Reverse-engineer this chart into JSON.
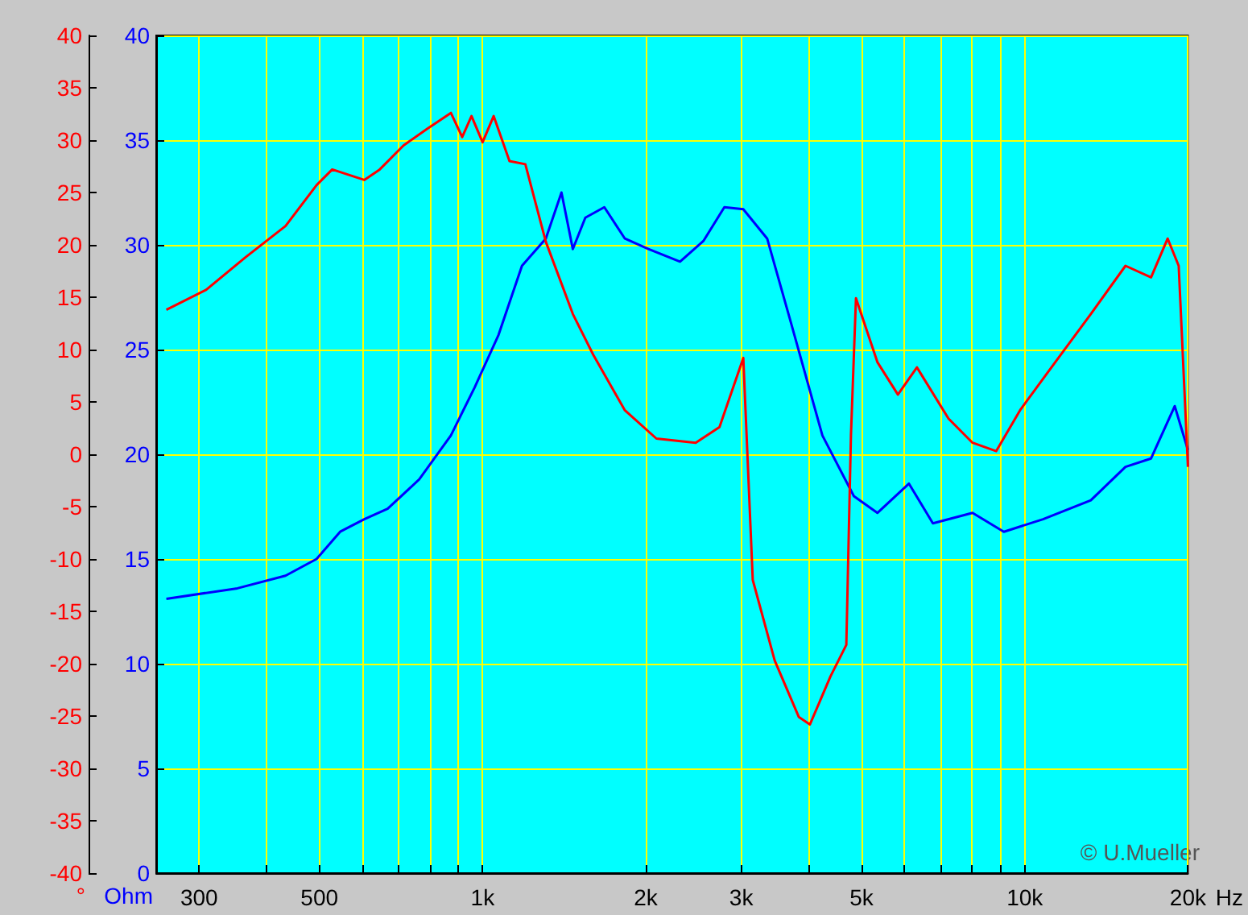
{
  "chart_data": {
    "type": "line",
    "log": "x",
    "grid": true,
    "marker": "none",
    "ylabel": "Ohm",
    "y2label": "°",
    "xlim": [
      250,
      20000
    ],
    "xticks": [
      300,
      {
        "value": 400,
        "label": null
      },
      500,
      {
        "value": 600,
        "label": null
      },
      {
        "value": 700,
        "label": null
      },
      {
        "value": 800,
        "label": null
      },
      {
        "value": 900,
        "label": null
      },
      {
        "value": 1000,
        "label": "1k"
      },
      {
        "value": 2000,
        "label": "2k"
      },
      {
        "value": 3000,
        "label": "3k"
      },
      {
        "value": 4000,
        "label": null
      },
      {
        "value": 5000,
        "label": "5k"
      },
      {
        "value": 6000,
        "label": null
      },
      {
        "value": 7000,
        "label": null
      },
      {
        "value": 8000,
        "label": null
      },
      {
        "value": 9000,
        "label": null
      },
      {
        "value": 10000,
        "label": "10k"
      },
      {
        "value": 20000,
        "label": "20k"
      }
    ],
    "xlabel": "Hz",
    "ylim": [
      0,
      40
    ],
    "yticks": [
      0,
      5,
      10,
      15,
      20,
      25,
      30,
      35,
      40
    ],
    "y2lim": [
      -40,
      40
    ],
    "y2ticks": [
      -40,
      -35,
      -30,
      -25,
      -20,
      -15,
      -10,
      -5,
      0,
      5,
      10,
      15,
      20,
      25,
      30,
      35,
      40
    ],
    "series": [
      {
        "color": "#0000ff",
        "x": [
          261,
          353,
          433,
          494,
          546,
          605,
          668,
          764,
          874,
          967,
          1070,
          1182,
          1308,
          1398,
          1467,
          1547,
          1677,
          1830,
          2022,
          2313,
          2557,
          2792,
          3026,
          3349,
          3703,
          4234,
          4840,
          5348,
          6116,
          6770,
          8011,
          9151,
          10810,
          13240,
          15340,
          17100,
          18910,
          20000
        ],
        "values": [
          13.1,
          13.6,
          14.2,
          15.0,
          16.3,
          16.9,
          17.4,
          18.8,
          20.9,
          23.2,
          25.7,
          29.0,
          30.3,
          32.5,
          29.8,
          31.3,
          31.8,
          30.3,
          29.8,
          29.2,
          30.2,
          31.8,
          31.7,
          30.3,
          26.3,
          20.9,
          18.0,
          17.2,
          18.6,
          16.7,
          17.2,
          16.3,
          16.9,
          17.8,
          19.4,
          19.8,
          22.3,
          20.2
        ]
      },
      {
        "color": "#ff0000",
        "axis": "y2",
        "x": [
          261,
          309,
          365,
          433,
          494,
          528,
          605,
          646,
          715,
          791,
          874,
          917,
          954,
          1000,
          1048,
          1121,
          1199,
          1308,
          1467,
          1600,
          1830,
          2092,
          2472,
          2735,
          3026,
          3150,
          3458,
          3832,
          4016,
          4383,
          4687,
          4780,
          4883,
          5348,
          5835,
          6326,
          7235,
          8011,
          8860,
          9801,
          11200,
          13240,
          15340,
          17100,
          18350,
          19230,
          20000
        ],
        "values": [
          13.8,
          15.7,
          18.8,
          21.8,
          25.7,
          27.2,
          26.2,
          27.2,
          29.5,
          31.1,
          32.6,
          30.3,
          32.3,
          29.8,
          32.3,
          28.0,
          27.7,
          20.3,
          13.4,
          9.5,
          4.2,
          1.5,
          1.1,
          2.6,
          9.2,
          -12.0,
          -19.7,
          -25.1,
          -25.8,
          -21.2,
          -18.2,
          1.8,
          14.9,
          8.8,
          5.7,
          8.3,
          3.4,
          1.1,
          0.3,
          4.2,
          8.3,
          13.4,
          18.0,
          16.9,
          20.6,
          18.0,
          -1.2
        ]
      }
    ],
    "annotations": [
      "© U.Mueller"
    ]
  }
}
